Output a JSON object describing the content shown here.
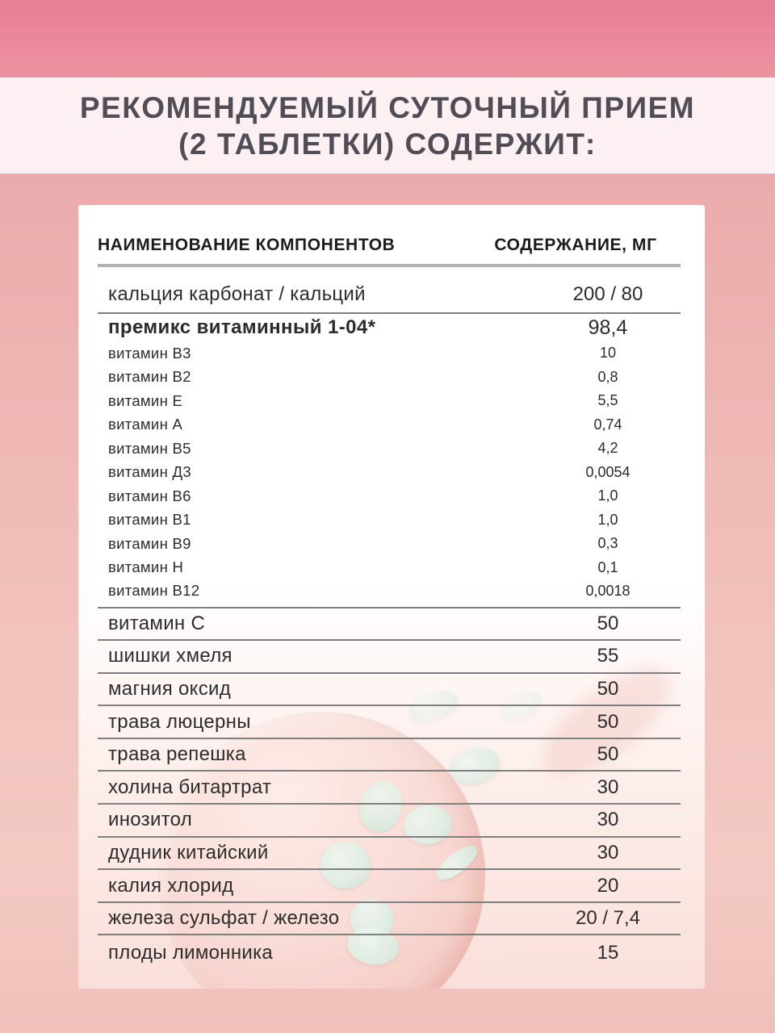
{
  "header": {
    "title_line1": "РЕКОМЕНДУЕМЫЙ СУТОЧНЫЙ ПРИЕМ",
    "title_line2": "(2 ТАБЛЕТКИ) СОДЕРЖИТ:"
  },
  "table": {
    "columns": {
      "name": "НАИМЕНОВАНИЕ КОМПОНЕНТОВ",
      "content": "СОДЕРЖАНИЕ, МГ"
    },
    "rows": [
      {
        "label": "кальция карбонат / кальций",
        "value": "200 / 80",
        "style": "r-first"
      },
      {
        "label": "премикс витаминный 1-04*",
        "value": "98,4",
        "style": "r-bold"
      },
      {
        "label": "витамин В3",
        "value": "10",
        "style": "r-sub"
      },
      {
        "label": "витамин В2",
        "value": "0,8",
        "style": "r-sub"
      },
      {
        "label": "витамин Е",
        "value": "5,5",
        "style": "r-sub"
      },
      {
        "label": "витамин А",
        "value": "0,74",
        "style": "r-sub"
      },
      {
        "label": "витамин В5",
        "value": "4,2",
        "style": "r-sub"
      },
      {
        "label": "витамин Д3",
        "value": "0,0054",
        "style": "r-sub"
      },
      {
        "label": "витамин В6",
        "value": "1,0",
        "style": "r-sub"
      },
      {
        "label": "витамин В1",
        "value": "1,0",
        "style": "r-sub"
      },
      {
        "label": "витамин В9",
        "value": "0,3",
        "style": "r-sub"
      },
      {
        "label": "витамин Н",
        "value": "0,1",
        "style": "r-sub"
      },
      {
        "label": "витамин В12",
        "value": "0,0018",
        "style": "r-sub r-line"
      },
      {
        "label": "витамин С",
        "value": "50",
        "style": "r-main"
      },
      {
        "label": "шишки хмеля",
        "value": "55",
        "style": "r-main"
      },
      {
        "label": "магния оксид",
        "value": "50",
        "style": "r-main"
      },
      {
        "label": "трава люцерны",
        "value": "50",
        "style": "r-main"
      },
      {
        "label": "трава репешка",
        "value": "50",
        "style": "r-main"
      },
      {
        "label": "холина битартрат",
        "value": "30",
        "style": "r-main"
      },
      {
        "label": "инозитол",
        "value": "30",
        "style": "r-main"
      },
      {
        "label": "дудник китайский",
        "value": "30",
        "style": "r-main"
      },
      {
        "label": "калия хлорид",
        "value": "20",
        "style": "r-main"
      },
      {
        "label": "железа сульфат / железо",
        "value": "20 / 7,4",
        "style": "r-main"
      },
      {
        "label": "плоды лимонника",
        "value": "15",
        "style": "r-last"
      }
    ]
  },
  "colors": {
    "top_band": "#ea8a9a",
    "title_band": "#fdf0f3",
    "page_background": "#f2c2bc",
    "card_background": "#ffffff",
    "card_tint_bottom": "#fadfda",
    "title_text": "#514d57",
    "body_text": "#2c2c2c",
    "rule_thick": "#b3b3b3",
    "rule_thin": "#7f7f7f",
    "pill_mint": "#e0efe5",
    "bowl_pink": "#f4c9c2"
  }
}
